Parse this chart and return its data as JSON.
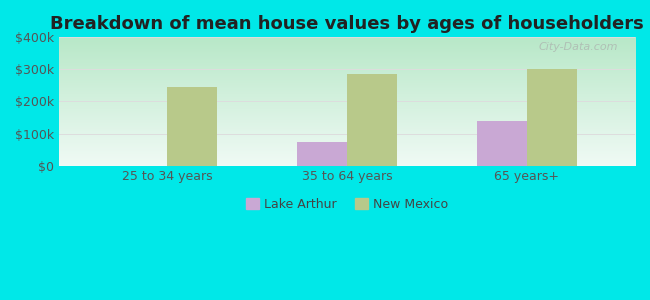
{
  "title": "Breakdown of mean house values by ages of householders",
  "categories": [
    "25 to 34 years",
    "35 to 64 years",
    "65 years+"
  ],
  "lake_arthur": [
    0,
    75000,
    140000
  ],
  "new_mexico": [
    245000,
    285000,
    302000
  ],
  "lake_arthur_color": "#c9a8d4",
  "new_mexico_color": "#b8c98a",
  "gradient_bottom": "#b8e8c8",
  "gradient_top": "#f0faf5",
  "outer_background": "#00e8e8",
  "ylim": [
    0,
    400000
  ],
  "yticks": [
    0,
    100000,
    200000,
    300000,
    400000
  ],
  "ytick_labels": [
    "$0",
    "$100k",
    "$200k",
    "$300k",
    "$400k"
  ],
  "legend_labels": [
    "Lake Arthur",
    "New Mexico"
  ],
  "watermark": "City-Data.com",
  "title_fontsize": 13,
  "tick_fontsize": 9
}
